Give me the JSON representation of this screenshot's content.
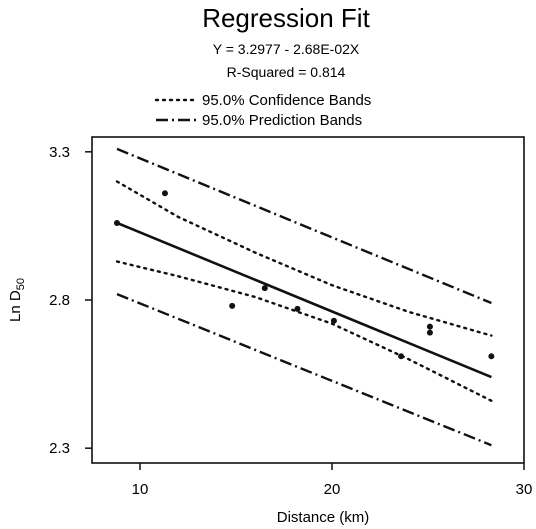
{
  "chart_data": {
    "type": "scatter",
    "title": "Regression Fit",
    "equation": "Y = 3.2977 - 2.68E-02X",
    "r_squared": "R-Squared = 0.814",
    "xlabel": "Distance (km)",
    "ylabel_main": "Ln D",
    "ylabel_sub": "50",
    "xlim": [
      7.5,
      30
    ],
    "ylim": [
      2.25,
      3.35
    ],
    "xticks": [
      10,
      20,
      30
    ],
    "xtick_labels": [
      "10",
      "20",
      "30"
    ],
    "yticks": [
      2.3,
      2.8,
      3.3
    ],
    "ytick_labels": [
      "2.3",
      "2.8",
      "3.3"
    ],
    "grid": false,
    "legend_position": "top",
    "legend": [
      {
        "label": "95.0% Confidence Bands",
        "style": "dotted"
      },
      {
        "label": "95.0% Prediction Bands",
        "style": "dash-dot"
      }
    ],
    "points": [
      {
        "x": 8.8,
        "y": 3.06
      },
      {
        "x": 11.3,
        "y": 3.16
      },
      {
        "x": 14.8,
        "y": 2.78
      },
      {
        "x": 16.5,
        "y": 2.84
      },
      {
        "x": 18.2,
        "y": 2.77
      },
      {
        "x": 20.1,
        "y": 2.73
      },
      {
        "x": 23.6,
        "y": 2.61
      },
      {
        "x": 25.1,
        "y": 2.71
      },
      {
        "x": 25.1,
        "y": 2.69
      },
      {
        "x": 28.3,
        "y": 2.61
      }
    ],
    "fit_line": {
      "x": [
        8.8,
        28.3
      ],
      "y": [
        3.06,
        2.54
      ]
    },
    "confidence_upper": {
      "x": [
        8.8,
        12,
        16,
        20,
        24,
        28.3
      ],
      "y": [
        3.2,
        3.08,
        2.96,
        2.85,
        2.76,
        2.68
      ]
    },
    "confidence_lower": {
      "x": [
        8.8,
        12,
        16,
        20,
        24,
        28.3
      ],
      "y": [
        2.93,
        2.88,
        2.81,
        2.72,
        2.6,
        2.46
      ]
    },
    "prediction_upper": {
      "x": [
        8.8,
        28.3
      ],
      "y": [
        3.31,
        2.79
      ]
    },
    "prediction_lower": {
      "x": [
        8.8,
        28.3
      ],
      "y": [
        2.82,
        2.31
      ]
    }
  }
}
